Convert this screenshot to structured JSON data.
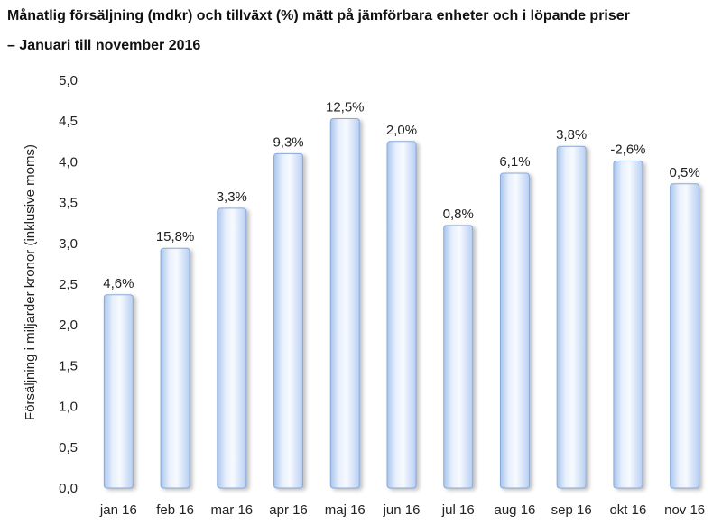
{
  "header": {
    "title_line1": "Månatlig försäljning (mdkr) och tillväxt (%) mätt på jämförbara enheter och i löpande priser",
    "title_line2": "– Januari till november 2016"
  },
  "chart_data": {
    "type": "bar",
    "title": "Månatlig försäljning (mdkr) och tillväxt (%) mätt på jämförbara enheter och i löpande priser – Januari till november 2016",
    "xlabel": "",
    "ylabel": "Försäljning i miljarder kronor (inklusive moms)",
    "ylim": [
      0,
      5
    ],
    "yticks": [
      "0,0",
      "0,5",
      "1,0",
      "1,5",
      "2,0",
      "2,5",
      "3,0",
      "3,5",
      "4,0",
      "4,5",
      "5,0"
    ],
    "categories": [
      "jan 16",
      "feb 16",
      "mar 16",
      "apr 16",
      "maj 16",
      "jun 16",
      "jul 16",
      "aug 16",
      "sep 16",
      "okt 16",
      "nov 16"
    ],
    "values": [
      2.37,
      2.94,
      3.43,
      4.1,
      4.53,
      4.25,
      3.22,
      3.86,
      4.19,
      4.01,
      3.73
    ],
    "data_labels": [
      "4,6%",
      "15,8%",
      "3,3%",
      "9,3%",
      "12,5%",
      "2,0%",
      "0,8%",
      "6,1%",
      "3,8%",
      "-2,6%",
      "0,5%"
    ],
    "grid": false,
    "legend": "none",
    "bar_color": "#c9dcf7",
    "bar_edge_color": "#8aa9d6"
  }
}
